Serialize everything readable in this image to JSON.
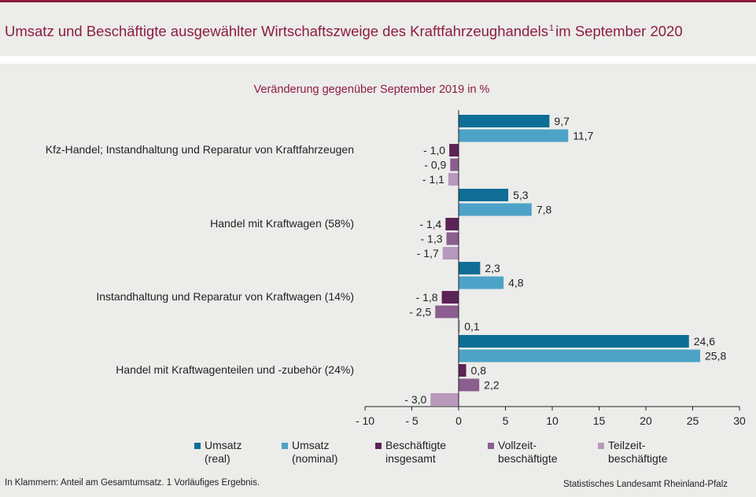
{
  "header": {
    "title": "Umsatz und Beschäftigte ausgewählter Wirtschaftszweige des Kraftfahrzeughandels",
    "title_sup": "1",
    "title_suffix": "im September 2020"
  },
  "chart_data": {
    "type": "bar",
    "orientation": "horizontal",
    "subtitle": "Veränderung gegenüber September 2019 in %",
    "xlim": [
      -10,
      30
    ],
    "xticks": [
      -10,
      -5,
      0,
      5,
      10,
      15,
      20,
      25,
      30
    ],
    "xtick_labels": [
      "- 10",
      "- 5",
      "0",
      "5",
      "10",
      "15",
      "20",
      "25",
      "30"
    ],
    "grid": false,
    "categories": [
      "Kfz-Handel; Instandhaltung und Reparatur von Kraftfahrzeugen",
      "Handel mit Kraftwagen (58%)",
      "Instandhaltung und Reparatur von Kraftwagen (14%)",
      "Handel mit Kraftwagenteilen und -zubehör (24%)"
    ],
    "series": [
      {
        "name": "Umsatz (real)",
        "legend_lines": [
          "Umsatz",
          "(real)"
        ],
        "color": "#0e6e96",
        "values": [
          9.7,
          5.3,
          2.3,
          24.6
        ],
        "labels": [
          "9,7",
          "5,3",
          "2,3",
          "24,6"
        ]
      },
      {
        "name": "Umsatz (nominal)",
        "legend_lines": [
          "Umsatz",
          "(nominal)"
        ],
        "color": "#4da3c7",
        "values": [
          11.7,
          7.8,
          4.8,
          25.8
        ],
        "labels": [
          "11,7",
          "7,8",
          "4,8",
          "25,8"
        ]
      },
      {
        "name": "Beschäftigte insgesamt",
        "legend_lines": [
          "Beschäftigte",
          "insgesamt"
        ],
        "color": "#5c2356",
        "values": [
          -1.0,
          -1.4,
          -1.8,
          0.8
        ],
        "labels": [
          "- 1,0",
          "- 1,4",
          "- 1,8",
          "0,8"
        ]
      },
      {
        "name": "Vollzeitbeschäftigte",
        "legend_lines": [
          "Vollzeit-",
          "beschäftigte"
        ],
        "color": "#8a5e8e",
        "values": [
          -0.9,
          -1.3,
          -2.5,
          2.2
        ],
        "labels": [
          "- 0,9",
          "- 1,3",
          "- 2,5",
          "2,2"
        ]
      },
      {
        "name": "Teilzeitbeschäftigte",
        "legend_lines": [
          "Teilzeit-",
          "beschäftigte"
        ],
        "color": "#b898bc",
        "values": [
          -1.1,
          -1.7,
          0.1,
          -3.0
        ],
        "labels": [
          "- 1,1",
          "- 1,7",
          "0,1",
          "- 3,0"
        ]
      }
    ],
    "legend_position": "bottom"
  },
  "footer": {
    "note": "In Klammern: Anteil am Gesamtumsatz. 1 Vorläufiges Ergebnis.",
    "source": "Statistisches Landesamt Rheinland-Pfalz"
  }
}
